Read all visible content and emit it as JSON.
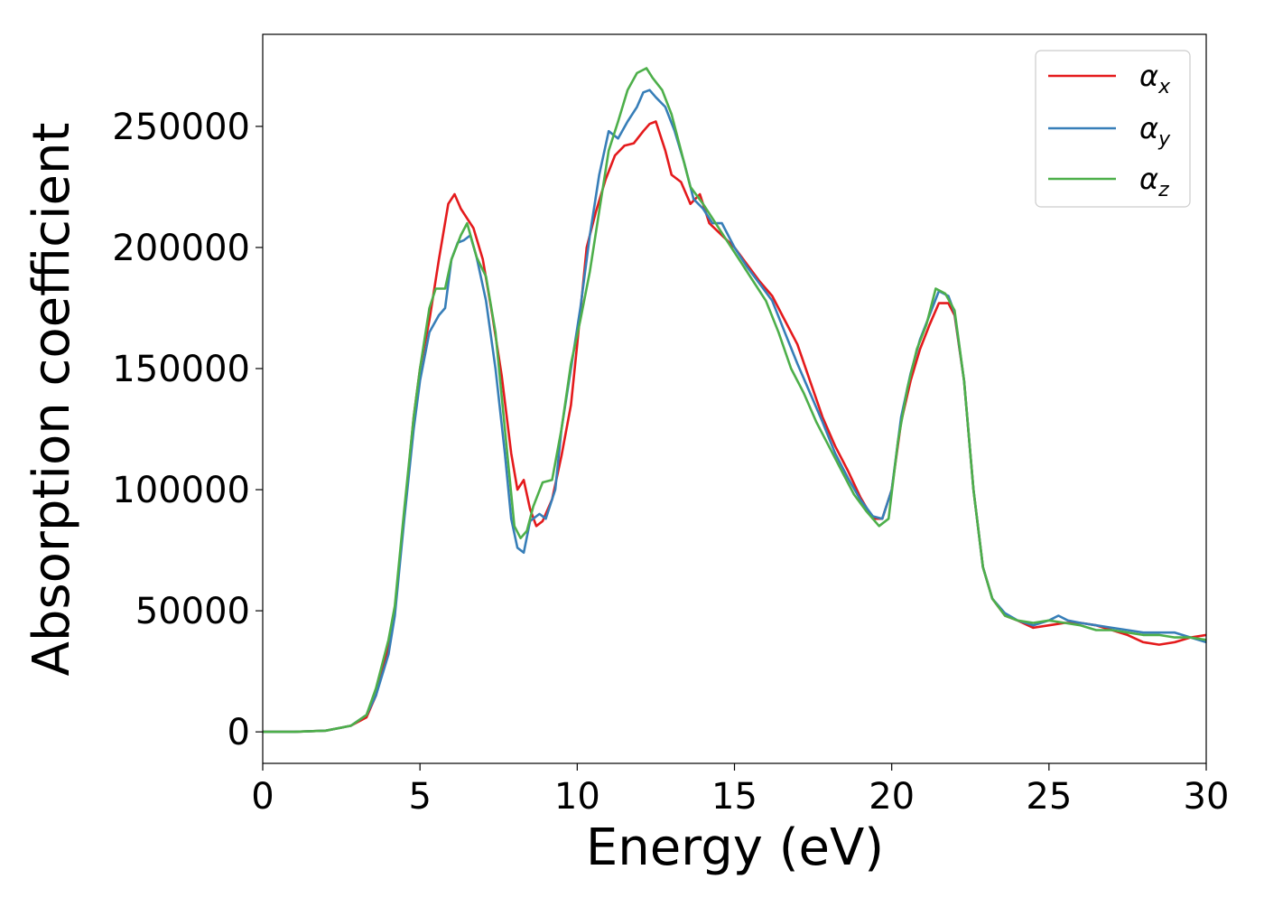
{
  "chart_data": {
    "type": "line",
    "title": "",
    "xlabel": "Energy (eV)",
    "ylabel": "Absorption coefficient",
    "xlim": [
      0,
      30
    ],
    "ylim": [
      -13000,
      288000
    ],
    "x_ticks": [
      0,
      5,
      10,
      15,
      20,
      25,
      30
    ],
    "y_ticks": [
      0,
      50000,
      100000,
      150000,
      200000,
      250000
    ],
    "x_tick_labels": [
      "0",
      "5",
      "10",
      "15",
      "20",
      "25",
      "30"
    ],
    "y_tick_labels": [
      "0",
      "50000",
      "100000",
      "150000",
      "200000",
      "250000"
    ],
    "grid": false,
    "legend_position": "top-right",
    "series": [
      {
        "name": "αx",
        "legend": {
          "base": "α",
          "sub": "x"
        },
        "color": "#e41a1c",
        "points": [
          [
            0,
            0
          ],
          [
            1,
            0
          ],
          [
            2,
            500
          ],
          [
            2.8,
            2500
          ],
          [
            3.3,
            6000
          ],
          [
            3.6,
            15000
          ],
          [
            4.0,
            35000
          ],
          [
            4.2,
            50000
          ],
          [
            4.5,
            90000
          ],
          [
            4.8,
            130000
          ],
          [
            5.0,
            150000
          ],
          [
            5.3,
            170000
          ],
          [
            5.6,
            195000
          ],
          [
            5.9,
            218000
          ],
          [
            6.1,
            222000
          ],
          [
            6.3,
            216000
          ],
          [
            6.5,
            212000
          ],
          [
            6.7,
            208000
          ],
          [
            7.0,
            195000
          ],
          [
            7.3,
            172000
          ],
          [
            7.6,
            147000
          ],
          [
            7.9,
            115000
          ],
          [
            8.1,
            100000
          ],
          [
            8.3,
            104000
          ],
          [
            8.5,
            92000
          ],
          [
            8.7,
            85000
          ],
          [
            8.9,
            87000
          ],
          [
            9.2,
            96000
          ],
          [
            9.5,
            114000
          ],
          [
            9.8,
            135000
          ],
          [
            10.0,
            160000
          ],
          [
            10.3,
            200000
          ],
          [
            10.6,
            215000
          ],
          [
            10.9,
            228000
          ],
          [
            11.2,
            238000
          ],
          [
            11.5,
            242000
          ],
          [
            11.8,
            243000
          ],
          [
            12.1,
            248000
          ],
          [
            12.3,
            251000
          ],
          [
            12.5,
            252000
          ],
          [
            12.8,
            240000
          ],
          [
            13.0,
            230000
          ],
          [
            13.3,
            227000
          ],
          [
            13.6,
            218000
          ],
          [
            13.9,
            222000
          ],
          [
            14.2,
            210000
          ],
          [
            14.6,
            205000
          ],
          [
            15.0,
            200000
          ],
          [
            15.4,
            193000
          ],
          [
            15.8,
            186000
          ],
          [
            16.2,
            180000
          ],
          [
            16.6,
            170000
          ],
          [
            17.0,
            160000
          ],
          [
            17.4,
            145000
          ],
          [
            17.8,
            130000
          ],
          [
            18.2,
            118000
          ],
          [
            18.6,
            108000
          ],
          [
            19.0,
            97000
          ],
          [
            19.4,
            88000
          ],
          [
            19.7,
            88000
          ],
          [
            20.0,
            100000
          ],
          [
            20.3,
            128000
          ],
          [
            20.6,
            145000
          ],
          [
            20.9,
            158000
          ],
          [
            21.2,
            168000
          ],
          [
            21.5,
            177000
          ],
          [
            21.8,
            177000
          ],
          [
            22.0,
            172000
          ],
          [
            22.3,
            145000
          ],
          [
            22.6,
            100000
          ],
          [
            22.9,
            68000
          ],
          [
            23.2,
            55000
          ],
          [
            23.6,
            48000
          ],
          [
            24.0,
            46000
          ],
          [
            24.5,
            43000
          ],
          [
            25.0,
            44000
          ],
          [
            25.5,
            45000
          ],
          [
            26.0,
            45000
          ],
          [
            26.5,
            44000
          ],
          [
            27.0,
            42000
          ],
          [
            27.5,
            40000
          ],
          [
            28.0,
            37000
          ],
          [
            28.5,
            36000
          ],
          [
            29.0,
            37000
          ],
          [
            29.5,
            39000
          ],
          [
            30.0,
            40000
          ]
        ]
      },
      {
        "name": "αy",
        "legend": {
          "base": "α",
          "sub": "y"
        },
        "color": "#377eb8",
        "points": [
          [
            0,
            0
          ],
          [
            1,
            0
          ],
          [
            2,
            500
          ],
          [
            2.8,
            2500
          ],
          [
            3.3,
            7000
          ],
          [
            3.6,
            15000
          ],
          [
            4.0,
            32000
          ],
          [
            4.2,
            48000
          ],
          [
            4.5,
            88000
          ],
          [
            4.8,
            125000
          ],
          [
            5.0,
            145000
          ],
          [
            5.3,
            165000
          ],
          [
            5.6,
            172000
          ],
          [
            5.8,
            175000
          ],
          [
            6.0,
            195000
          ],
          [
            6.2,
            202000
          ],
          [
            6.4,
            203000
          ],
          [
            6.6,
            205000
          ],
          [
            6.8,
            196000
          ],
          [
            7.1,
            178000
          ],
          [
            7.4,
            150000
          ],
          [
            7.7,
            115000
          ],
          [
            7.9,
            88000
          ],
          [
            8.1,
            76000
          ],
          [
            8.3,
            74000
          ],
          [
            8.5,
            87000
          ],
          [
            8.8,
            90000
          ],
          [
            9.0,
            88000
          ],
          [
            9.3,
            100000
          ],
          [
            9.5,
            125000
          ],
          [
            9.8,
            150000
          ],
          [
            10.1,
            175000
          ],
          [
            10.4,
            205000
          ],
          [
            10.7,
            230000
          ],
          [
            11.0,
            248000
          ],
          [
            11.3,
            245000
          ],
          [
            11.6,
            252000
          ],
          [
            11.9,
            258000
          ],
          [
            12.1,
            264000
          ],
          [
            12.3,
            265000
          ],
          [
            12.5,
            262000
          ],
          [
            12.8,
            258000
          ],
          [
            13.1,
            248000
          ],
          [
            13.4,
            235000
          ],
          [
            13.7,
            220000
          ],
          [
            14.0,
            216000
          ],
          [
            14.3,
            210000
          ],
          [
            14.6,
            210000
          ],
          [
            15.0,
            200000
          ],
          [
            15.4,
            192000
          ],
          [
            15.8,
            185000
          ],
          [
            16.2,
            178000
          ],
          [
            16.6,
            165000
          ],
          [
            17.0,
            152000
          ],
          [
            17.4,
            140000
          ],
          [
            17.8,
            128000
          ],
          [
            18.2,
            115000
          ],
          [
            18.6,
            105000
          ],
          [
            19.0,
            96000
          ],
          [
            19.4,
            89000
          ],
          [
            19.7,
            88000
          ],
          [
            20.0,
            100000
          ],
          [
            20.3,
            130000
          ],
          [
            20.6,
            148000
          ],
          [
            20.9,
            162000
          ],
          [
            21.2,
            172000
          ],
          [
            21.5,
            182000
          ],
          [
            21.8,
            180000
          ],
          [
            22.0,
            173000
          ],
          [
            22.3,
            145000
          ],
          [
            22.6,
            100000
          ],
          [
            22.9,
            68000
          ],
          [
            23.2,
            55000
          ],
          [
            23.6,
            49000
          ],
          [
            24.0,
            46000
          ],
          [
            24.5,
            44000
          ],
          [
            25.0,
            46000
          ],
          [
            25.3,
            48000
          ],
          [
            25.6,
            46000
          ],
          [
            26.0,
            45000
          ],
          [
            26.5,
            44000
          ],
          [
            27.0,
            43000
          ],
          [
            27.5,
            42000
          ],
          [
            28.0,
            41000
          ],
          [
            28.5,
            41000
          ],
          [
            29.0,
            41000
          ],
          [
            29.5,
            39000
          ],
          [
            30.0,
            37000
          ]
        ]
      },
      {
        "name": "αz",
        "legend": {
          "base": "α",
          "sub": "z"
        },
        "color": "#4daf4a",
        "points": [
          [
            0,
            0
          ],
          [
            1,
            0
          ],
          [
            2,
            500
          ],
          [
            2.8,
            2500
          ],
          [
            3.3,
            7000
          ],
          [
            3.6,
            18000
          ],
          [
            4.0,
            38000
          ],
          [
            4.2,
            52000
          ],
          [
            4.5,
            92000
          ],
          [
            4.8,
            130000
          ],
          [
            5.0,
            150000
          ],
          [
            5.3,
            175000
          ],
          [
            5.5,
            183000
          ],
          [
            5.8,
            183000
          ],
          [
            6.0,
            195000
          ],
          [
            6.3,
            205000
          ],
          [
            6.5,
            210000
          ],
          [
            6.8,
            196000
          ],
          [
            7.1,
            188000
          ],
          [
            7.4,
            165000
          ],
          [
            7.7,
            125000
          ],
          [
            8.0,
            85000
          ],
          [
            8.2,
            80000
          ],
          [
            8.4,
            83000
          ],
          [
            8.6,
            93000
          ],
          [
            8.9,
            103000
          ],
          [
            9.2,
            104000
          ],
          [
            9.5,
            125000
          ],
          [
            9.8,
            152000
          ],
          [
            10.1,
            170000
          ],
          [
            10.4,
            190000
          ],
          [
            10.7,
            215000
          ],
          [
            11.0,
            240000
          ],
          [
            11.3,
            252000
          ],
          [
            11.6,
            265000
          ],
          [
            11.9,
            272000
          ],
          [
            12.2,
            274000
          ],
          [
            12.4,
            270000
          ],
          [
            12.7,
            265000
          ],
          [
            13.0,
            255000
          ],
          [
            13.3,
            240000
          ],
          [
            13.6,
            225000
          ],
          [
            14.0,
            218000
          ],
          [
            14.4,
            210000
          ],
          [
            14.8,
            202000
          ],
          [
            15.2,
            194000
          ],
          [
            15.6,
            186000
          ],
          [
            16.0,
            178000
          ],
          [
            16.4,
            165000
          ],
          [
            16.8,
            150000
          ],
          [
            17.2,
            140000
          ],
          [
            17.6,
            128000
          ],
          [
            18.0,
            118000
          ],
          [
            18.4,
            108000
          ],
          [
            18.8,
            98000
          ],
          [
            19.2,
            91000
          ],
          [
            19.6,
            85000
          ],
          [
            19.9,
            88000
          ],
          [
            20.2,
            120000
          ],
          [
            20.5,
            142000
          ],
          [
            20.8,
            158000
          ],
          [
            21.1,
            168000
          ],
          [
            21.4,
            183000
          ],
          [
            21.7,
            181000
          ],
          [
            22.0,
            174000
          ],
          [
            22.3,
            145000
          ],
          [
            22.6,
            100000
          ],
          [
            22.9,
            68000
          ],
          [
            23.2,
            55000
          ],
          [
            23.6,
            48000
          ],
          [
            24.0,
            46000
          ],
          [
            24.5,
            45000
          ],
          [
            25.0,
            46000
          ],
          [
            25.5,
            45000
          ],
          [
            26.0,
            44000
          ],
          [
            26.5,
            42000
          ],
          [
            27.0,
            42000
          ],
          [
            27.5,
            41000
          ],
          [
            28.0,
            40000
          ],
          [
            28.5,
            40000
          ],
          [
            29.0,
            39000
          ],
          [
            29.5,
            39000
          ],
          [
            30.0,
            38000
          ]
        ]
      }
    ]
  }
}
